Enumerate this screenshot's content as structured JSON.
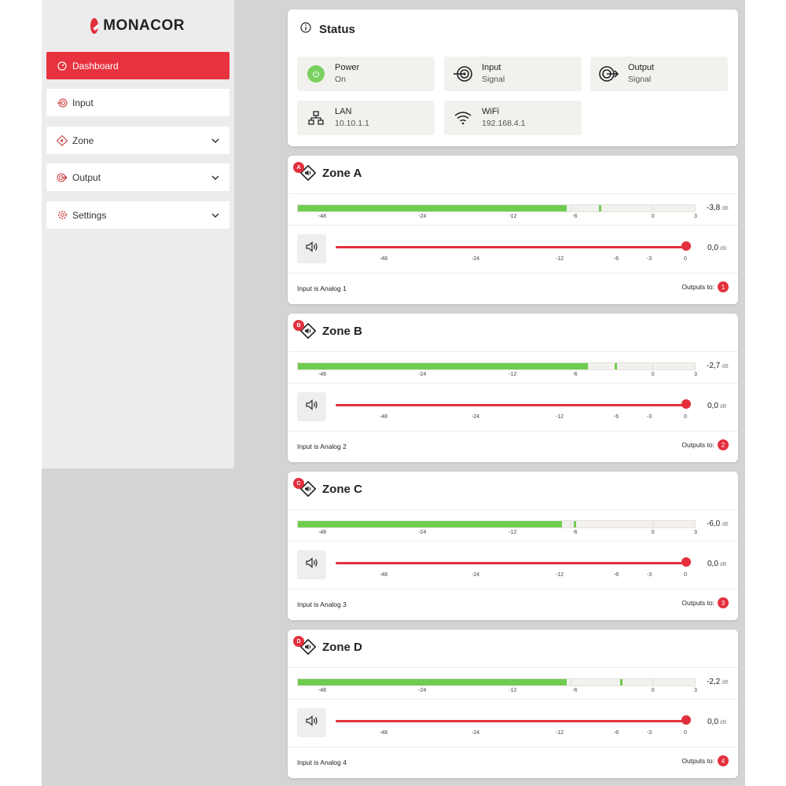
{
  "brand": {
    "name": "MONACOR",
    "accent": "#e3303c",
    "meter_color": "#6fcc4f"
  },
  "sidebar": {
    "items": [
      {
        "label": "Dashboard",
        "icon": "gauge-icon",
        "active": true
      },
      {
        "label": "Input",
        "icon": "input-icon"
      },
      {
        "label": "Zone",
        "icon": "zone-icon",
        "expandable": true
      },
      {
        "label": "Output",
        "icon": "output-icon",
        "expandable": true
      },
      {
        "label": "Settings",
        "icon": "gear-icon",
        "expandable": true
      }
    ]
  },
  "status": {
    "title": "Status",
    "tiles": [
      {
        "label": "Power",
        "value": "On",
        "icon": "power-icon"
      },
      {
        "label": "Input",
        "value": "Signal",
        "icon": "input-signal-icon"
      },
      {
        "label": "Output",
        "value": "Signal",
        "icon": "output-signal-icon"
      },
      {
        "label": "LAN",
        "value": "10.10.1.1",
        "icon": "lan-icon"
      },
      {
        "label": "WiFi",
        "value": "192.168.4.1",
        "icon": "wifi-icon"
      }
    ]
  },
  "meter_scale": [
    "-48",
    "-24",
    "-12",
    "-6",
    "0",
    "3"
  ],
  "volume_scale": [
    "-48",
    "-24",
    "-12",
    "-6",
    "-3",
    "0"
  ],
  "db_unit": "dB",
  "outputs_label": "Outputs to:",
  "zones": [
    {
      "badge": "A",
      "title": "Zone A",
      "level": "-3,8",
      "level_fill": 0.675,
      "peak": 0.755,
      "volume": "0,0",
      "volume_pos": 1.0,
      "input": "Input is Analog 1",
      "output": "1"
    },
    {
      "badge": "B",
      "title": "Zone B",
      "level": "-2,7",
      "level_fill": 0.727,
      "peak": 0.795,
      "volume": "0,0",
      "volume_pos": 1.0,
      "input": "Input is Analog 2",
      "output": "2"
    },
    {
      "badge": "C",
      "title": "Zone C",
      "level": "-6,0",
      "level_fill": 0.663,
      "peak": 0.693,
      "volume": "0,0",
      "volume_pos": 1.0,
      "input": "Input is Analog 3",
      "output": "3"
    },
    {
      "badge": "D",
      "title": "Zone D",
      "level": "-2,2",
      "level_fill": 0.675,
      "peak": 0.808,
      "volume": "0,0",
      "volume_pos": 1.0,
      "input": "Input is Analog 4",
      "output": "4"
    }
  ]
}
